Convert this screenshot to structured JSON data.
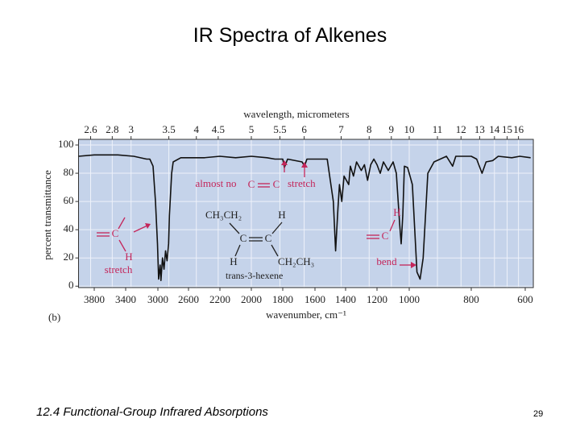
{
  "title": "IR Spectra of Alkenes",
  "footer": "12.4 Functional-Group Infrared Absorptions",
  "page_number": "29",
  "chart_data": {
    "type": "line",
    "panel_label": "(b)",
    "x_label": "wavenumber, cm⁻¹",
    "x2_label": "wavelength, micrometers",
    "y_label": "percent transmittance",
    "color": "#111111",
    "grid": true,
    "xlim": [
      4000,
      570
    ],
    "ylim": [
      -1,
      104
    ],
    "xticks": [
      3800,
      3400,
      3000,
      2600,
      2200,
      2000,
      1800,
      1600,
      1400,
      1200,
      1000,
      800,
      600
    ],
    "yticks": [
      0,
      20,
      40,
      60,
      80,
      100
    ],
    "x2ticks": [
      {
        "value": 3846,
        "label": "2.6"
      },
      {
        "value": 3571,
        "label": "2.8"
      },
      {
        "value": 3333,
        "label": "3"
      },
      {
        "value": 2857,
        "label": "3.5"
      },
      {
        "value": 2500,
        "label": "4"
      },
      {
        "value": 2222,
        "label": "4.5"
      },
      {
        "value": 2000,
        "label": "5"
      },
      {
        "value": 1818,
        "label": "5.5"
      },
      {
        "value": 1667,
        "label": "6"
      },
      {
        "value": 1429,
        "label": "7"
      },
      {
        "value": 1250,
        "label": "8"
      },
      {
        "value": 1111,
        "label": "9"
      },
      {
        "value": 1000,
        "label": "10"
      },
      {
        "value": 909,
        "label": "11"
      },
      {
        "value": 833,
        "label": "12"
      },
      {
        "value": 769,
        "label": "13"
      },
      {
        "value": 714,
        "label": "14"
      },
      {
        "value": 667,
        "label": "15"
      },
      {
        "value": 625,
        "label": "16"
      }
    ],
    "x": [
      4000,
      3800,
      3500,
      3300,
      3140,
      3100,
      3060,
      3030,
      3005,
      2990,
      2970,
      2960,
      2940,
      2920,
      2900,
      2880,
      2860,
      2850,
      2820,
      2800,
      2700,
      2400,
      2200,
      2100,
      2000,
      1900,
      1850,
      1800,
      1790,
      1770,
      1680,
      1665,
      1650,
      1520,
      1480,
      1465,
      1450,
      1440,
      1425,
      1410,
      1380,
      1370,
      1350,
      1330,
      1300,
      1280,
      1260,
      1240,
      1220,
      1200,
      1180,
      1160,
      1130,
      1100,
      1080,
      1060,
      1050,
      1040,
      1030,
      1010,
      990,
      975,
      965,
      955,
      940,
      920,
      900,
      880,
      860,
      850,
      800,
      780,
      760,
      745,
      720,
      700,
      650,
      620,
      580
    ],
    "values": [
      92,
      93,
      93,
      92,
      90,
      90,
      85,
      60,
      30,
      5,
      15,
      4,
      20,
      12,
      25,
      18,
      30,
      50,
      80,
      88,
      91,
      91,
      92,
      91,
      92,
      91,
      90,
      90,
      84,
      90,
      88,
      85,
      90,
      90,
      60,
      25,
      55,
      72,
      60,
      78,
      72,
      85,
      78,
      88,
      82,
      86,
      75,
      86,
      90,
      86,
      80,
      88,
      82,
      88,
      80,
      45,
      30,
      50,
      85,
      84,
      72,
      10,
      5,
      20,
      80,
      88,
      90,
      92,
      85,
      92,
      92,
      90,
      80,
      88,
      89,
      92,
      91,
      92,
      91
    ],
    "annotations": [
      "almost no",
      "C",
      "C",
      "stretch",
      "CH₃CH₂",
      "H",
      "C",
      "C",
      "H",
      "CH₂CH₃",
      "trans-3-hexene",
      "C",
      "H",
      "stretch",
      "H",
      "C",
      "bend"
    ]
  }
}
